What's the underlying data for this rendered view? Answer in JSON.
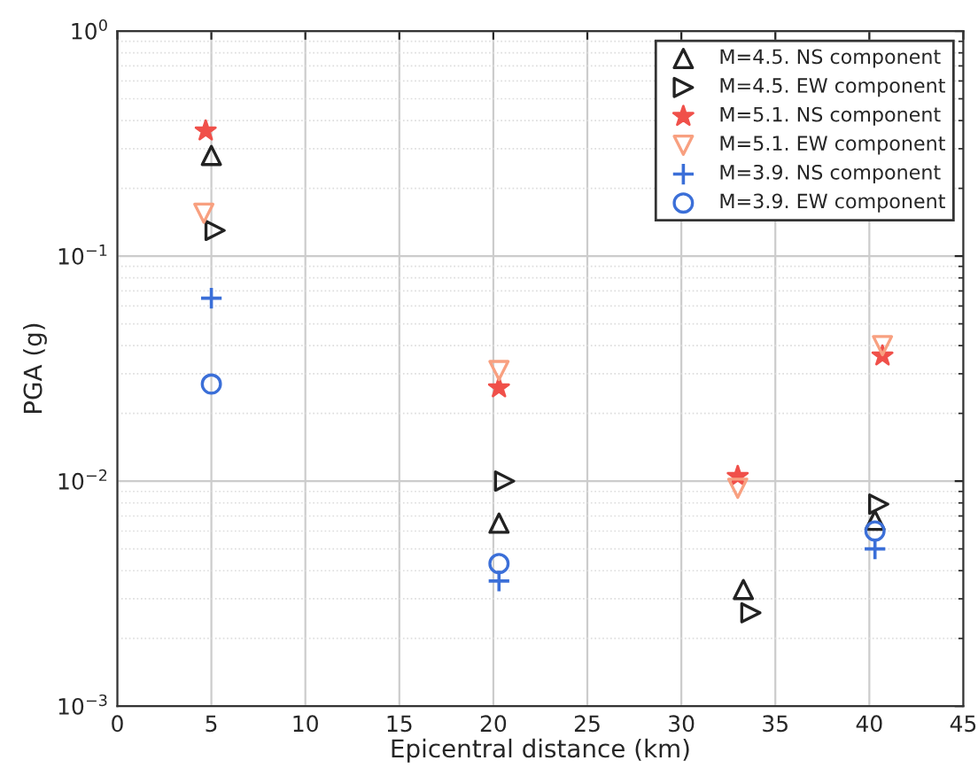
{
  "chart_data": {
    "type": "scatter",
    "xlabel": "Epicentral distance (km)",
    "ylabel": "PGA (g)",
    "log": "y",
    "xlim": [
      0,
      45
    ],
    "xticks": [
      0,
      5,
      10,
      15,
      20,
      25,
      30,
      35,
      40,
      45
    ],
    "ylim": [
      0.001,
      1
    ],
    "yticks": [
      {
        "value": 0.001,
        "label": "10$^{−3}$"
      },
      {
        "value": 0.01,
        "label": "10$^{−2}$"
      },
      {
        "value": 0.1,
        "label": "10$^{−1}$"
      },
      {
        "value": 1,
        "label": "10$^{0}$"
      }
    ],
    "grid": true,
    "legend": "top right",
    "series": [
      {
        "name": "M=4.5. NS component",
        "color": "#222222",
        "marker": "triangle",
        "x": [
          5.0,
          20.3,
          33.3,
          40.3
        ],
        "values": [
          0.28,
          0.0065,
          0.0033,
          0.0067
        ]
      },
      {
        "name": "M=4.5. EW component",
        "color": "#222222",
        "marker": "triangle_right",
        "x": [
          5.2,
          20.6,
          33.7,
          40.5
        ],
        "values": [
          0.13,
          0.01,
          0.0026,
          0.0079
        ]
      },
      {
        "name": "M=5.1. NS component",
        "color": "#f0504a",
        "marker": "star",
        "x": [
          4.7,
          20.3,
          33.0,
          40.7
        ],
        "values": [
          0.36,
          0.026,
          0.0105,
          0.036
        ]
      },
      {
        "name": "M=5.1. EW component",
        "color": "#f8a080",
        "marker": "triangle_down",
        "x": [
          4.6,
          20.3,
          33.0,
          40.7
        ],
        "values": [
          0.155,
          0.031,
          0.0093,
          0.04
        ]
      },
      {
        "name": "M=3.9. NS component",
        "color": "#3b6fd8",
        "marker": "plus",
        "x": [
          5.0,
          20.3,
          40.3
        ],
        "values": [
          0.065,
          0.0036,
          0.005
        ]
      },
      {
        "name": "M=3.9. EW component",
        "color": "#3b6fd8",
        "marker": "circle",
        "x": [
          5.0,
          20.3,
          40.3
        ],
        "values": [
          0.027,
          0.0043,
          0.006
        ]
      }
    ]
  }
}
